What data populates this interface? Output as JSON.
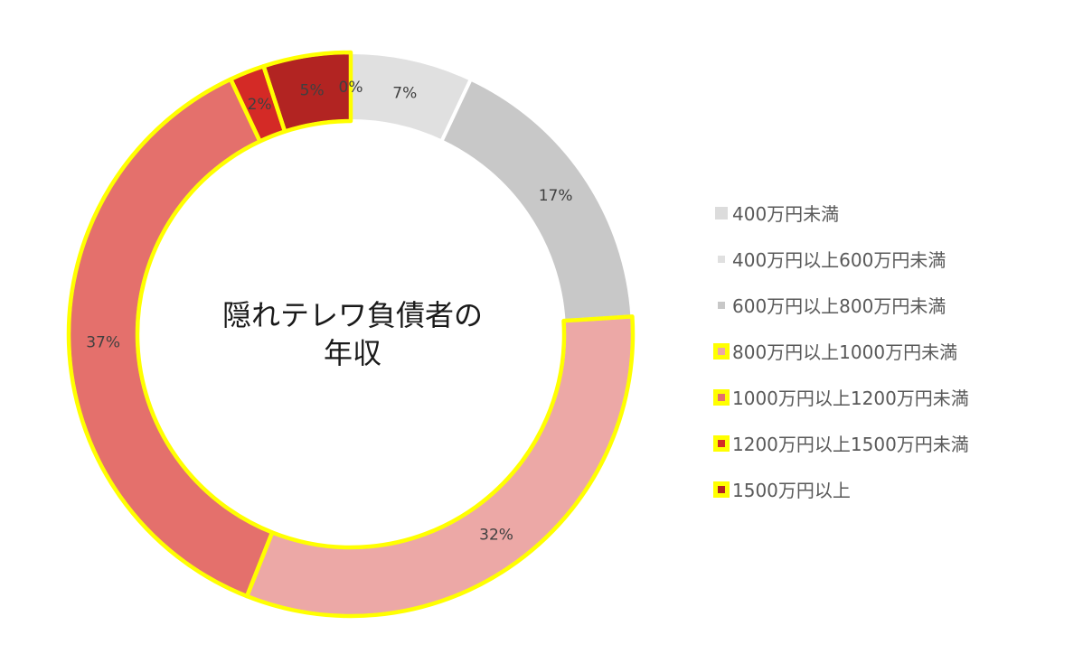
{
  "chart_data": {
    "type": "doughnut",
    "center_title_lines": [
      "隠れテレワ負債者の",
      "年収"
    ],
    "legend_position": "right",
    "series": [
      {
        "label": "400万円未満",
        "value": 0,
        "data_label": "0%",
        "color": "#dcdcdc",
        "highlighted": false
      },
      {
        "label": "400万円以上600万円未満",
        "value": 7,
        "data_label": "7%",
        "color": "#e0e0e0",
        "highlighted": false
      },
      {
        "label": "600万円以上800万円未満",
        "value": 17,
        "data_label": "17%",
        "color": "#c8c8c8",
        "highlighted": false
      },
      {
        "label": "800万円以上1000万円未満",
        "value": 32,
        "data_label": "32%",
        "color": "#eca8a6",
        "highlighted": true
      },
      {
        "label": "1000万円以上1200万円未満",
        "value": 37,
        "data_label": "37%",
        "color": "#e4706c",
        "highlighted": true
      },
      {
        "label": "1200万円以上1500万円未満",
        "value": 2,
        "data_label": "2%",
        "color": "#d42a26",
        "highlighted": true
      },
      {
        "label": "1500万円以上",
        "value": 5,
        "data_label": "5%",
        "color": "#b22422",
        "highlighted": true
      }
    ],
    "highlight_color": "#ffff00"
  }
}
